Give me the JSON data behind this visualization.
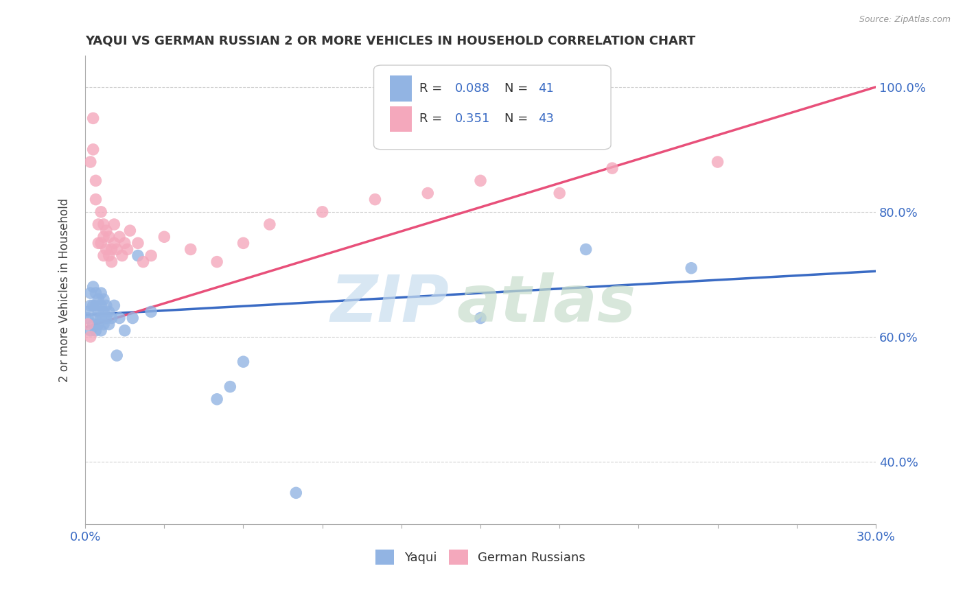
{
  "title": "YAQUI VS GERMAN RUSSIAN 2 OR MORE VEHICLES IN HOUSEHOLD CORRELATION CHART",
  "source": "Source: ZipAtlas.com",
  "ylabel": "2 or more Vehicles in Household",
  "xlim": [
    0.0,
    0.3
  ],
  "ylim": [
    0.3,
    1.05
  ],
  "xtick_positions": [
    0.0,
    0.03,
    0.06,
    0.09,
    0.12,
    0.15,
    0.18,
    0.21,
    0.24,
    0.27,
    0.3
  ],
  "xticklabels": [
    "0.0%",
    "",
    "",
    "",
    "",
    "",
    "",
    "",
    "",
    "",
    "30.0%"
  ],
  "ytick_positions": [
    0.4,
    0.6,
    0.8,
    1.0
  ],
  "ytick_labels": [
    "40.0%",
    "60.0%",
    "80.0%",
    "100.0%"
  ],
  "legend_yaqui_R": "0.088",
  "legend_yaqui_N": 41,
  "legend_german_R": "0.351",
  "legend_german_N": 43,
  "yaqui_color": "#92B4E3",
  "german_color": "#F4A8BC",
  "yaqui_line_color": "#3A6BC4",
  "german_line_color": "#E8507A",
  "background_color": "#ffffff",
  "grid_color": "#cccccc",
  "yaqui_x": [
    0.001,
    0.001,
    0.002,
    0.002,
    0.002,
    0.003,
    0.003,
    0.003,
    0.004,
    0.004,
    0.004,
    0.004,
    0.005,
    0.005,
    0.005,
    0.006,
    0.006,
    0.006,
    0.006,
    0.007,
    0.007,
    0.007,
    0.008,
    0.008,
    0.009,
    0.009,
    0.01,
    0.011,
    0.012,
    0.013,
    0.015,
    0.018,
    0.02,
    0.025,
    0.05,
    0.055,
    0.06,
    0.08,
    0.15,
    0.19,
    0.23
  ],
  "yaqui_y": [
    0.64,
    0.63,
    0.61,
    0.65,
    0.67,
    0.62,
    0.65,
    0.68,
    0.61,
    0.63,
    0.65,
    0.67,
    0.62,
    0.64,
    0.66,
    0.61,
    0.63,
    0.65,
    0.67,
    0.62,
    0.64,
    0.66,
    0.63,
    0.65,
    0.62,
    0.64,
    0.63,
    0.65,
    0.57,
    0.63,
    0.61,
    0.63,
    0.73,
    0.64,
    0.5,
    0.52,
    0.56,
    0.35,
    0.63,
    0.74,
    0.71
  ],
  "german_x": [
    0.001,
    0.002,
    0.002,
    0.003,
    0.003,
    0.004,
    0.004,
    0.005,
    0.005,
    0.006,
    0.006,
    0.007,
    0.007,
    0.007,
    0.008,
    0.008,
    0.009,
    0.009,
    0.01,
    0.01,
    0.011,
    0.011,
    0.012,
    0.013,
    0.014,
    0.015,
    0.016,
    0.017,
    0.02,
    0.022,
    0.025,
    0.03,
    0.04,
    0.05,
    0.06,
    0.07,
    0.09,
    0.11,
    0.13,
    0.15,
    0.18,
    0.2,
    0.24
  ],
  "german_y": [
    0.62,
    0.6,
    0.88,
    0.95,
    0.9,
    0.85,
    0.82,
    0.78,
    0.75,
    0.8,
    0.75,
    0.73,
    0.78,
    0.76,
    0.74,
    0.77,
    0.73,
    0.76,
    0.72,
    0.74,
    0.75,
    0.78,
    0.74,
    0.76,
    0.73,
    0.75,
    0.74,
    0.77,
    0.75,
    0.72,
    0.73,
    0.76,
    0.74,
    0.72,
    0.75,
    0.78,
    0.8,
    0.82,
    0.83,
    0.85,
    0.83,
    0.87,
    0.88
  ]
}
